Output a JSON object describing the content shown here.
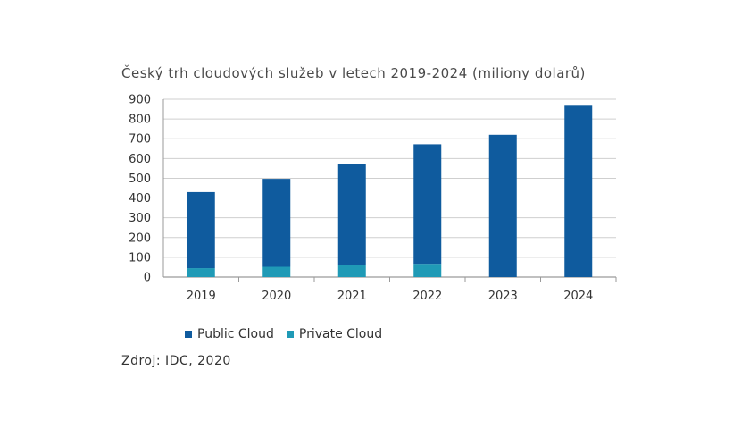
{
  "chart_data": {
    "type": "bar",
    "stacked": true,
    "title": "Český trh cloudových služeb v letech 2019-2024 (miliony dolarů)",
    "categories": [
      "2019",
      "2020",
      "2021",
      "2022",
      "2023",
      "2024"
    ],
    "series": [
      {
        "name": "Public Cloud",
        "color": "#0f5b9e",
        "values": [
          385,
          445,
          508,
          605,
          720,
          867
        ]
      },
      {
        "name": "Private Cloud",
        "color": "#1f9ab6",
        "values": [
          45,
          52,
          63,
          67,
          null,
          null
        ]
      }
    ],
    "yticks": [
      0,
      100,
      200,
      300,
      400,
      500,
      600,
      700,
      800,
      900
    ],
    "ylim": [
      0,
      900
    ],
    "grid": true,
    "legend_position": "bottom-left",
    "source": "Zdroj: IDC, 2020"
  }
}
